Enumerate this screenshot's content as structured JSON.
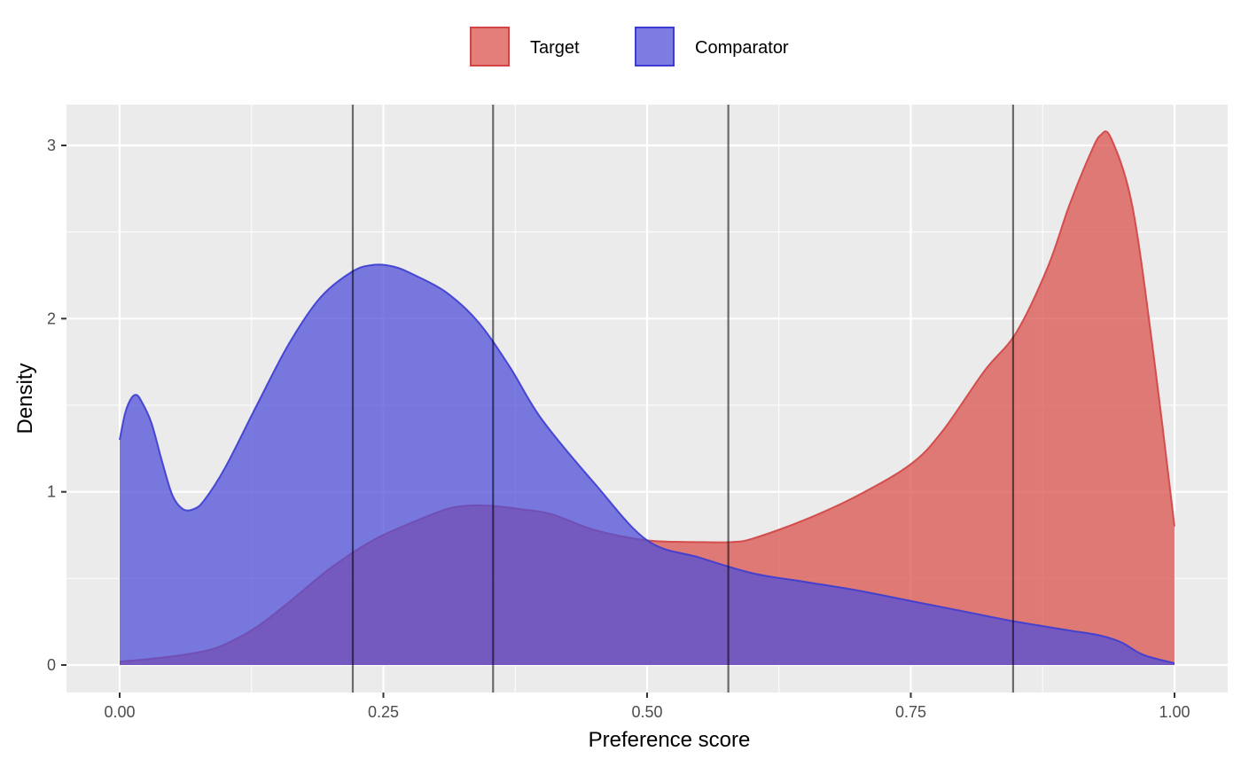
{
  "colors": {
    "target_fill": "#d9534f",
    "target_line": "#d24444",
    "comparator_fill": "#5050d8",
    "comparator_line": "#3c3cd2",
    "panel_bg": "#ebebeb",
    "grid": "#ffffff",
    "vline": "#555555"
  },
  "chart_data": {
    "type": "area",
    "xlabel": "Preference score",
    "ylabel": "Density",
    "xlim": [
      0,
      1
    ],
    "ylim": [
      0,
      3
    ],
    "x_ticks": [
      0,
      0.25,
      0.5,
      0.75,
      1
    ],
    "x_tick_labels": [
      "0.00",
      "0.25",
      "0.50",
      "0.75",
      "1.00"
    ],
    "y_ticks": [
      0,
      1,
      2,
      3
    ],
    "y_tick_labels": [
      "0",
      "1",
      "2",
      "3"
    ],
    "grid": true,
    "legend_position": "top",
    "series": [
      {
        "name": "Target",
        "x": [
          0,
          0.02,
          0.05,
          0.08,
          0.1,
          0.13,
          0.16,
          0.2,
          0.24,
          0.28,
          0.31,
          0.33,
          0.35,
          0.38,
          0.41,
          0.45,
          0.5,
          0.55,
          0.58,
          0.6,
          0.65,
          0.7,
          0.75,
          0.78,
          0.82,
          0.85,
          0.88,
          0.9,
          0.92,
          0.93,
          0.94,
          0.96,
          0.98,
          1.0
        ],
        "y": [
          0.02,
          0.03,
          0.05,
          0.08,
          0.12,
          0.22,
          0.36,
          0.56,
          0.72,
          0.83,
          0.9,
          0.92,
          0.92,
          0.9,
          0.87,
          0.78,
          0.72,
          0.71,
          0.71,
          0.73,
          0.84,
          0.98,
          1.16,
          1.35,
          1.7,
          1.92,
          2.3,
          2.65,
          2.95,
          3.06,
          3.04,
          2.65,
          1.8,
          0.8
        ]
      },
      {
        "name": "Comparator",
        "x": [
          0,
          0.005,
          0.01,
          0.015,
          0.02,
          0.03,
          0.04,
          0.05,
          0.06,
          0.07,
          0.08,
          0.1,
          0.13,
          0.16,
          0.19,
          0.22,
          0.24,
          0.26,
          0.28,
          0.31,
          0.34,
          0.37,
          0.4,
          0.45,
          0.5,
          0.55,
          0.6,
          0.65,
          0.7,
          0.75,
          0.8,
          0.85,
          0.9,
          0.93,
          0.95,
          0.97,
          1.0
        ],
        "y": [
          1.3,
          1.45,
          1.53,
          1.56,
          1.53,
          1.4,
          1.18,
          0.98,
          0.9,
          0.9,
          0.95,
          1.14,
          1.5,
          1.85,
          2.12,
          2.27,
          2.31,
          2.3,
          2.25,
          2.15,
          1.98,
          1.72,
          1.42,
          1.05,
          0.72,
          0.62,
          0.53,
          0.48,
          0.43,
          0.37,
          0.31,
          0.25,
          0.2,
          0.17,
          0.13,
          0.06,
          0.01
        ]
      }
    ],
    "vertical_lines": [
      0.221,
      0.354,
      0.577,
      0.847
    ]
  }
}
